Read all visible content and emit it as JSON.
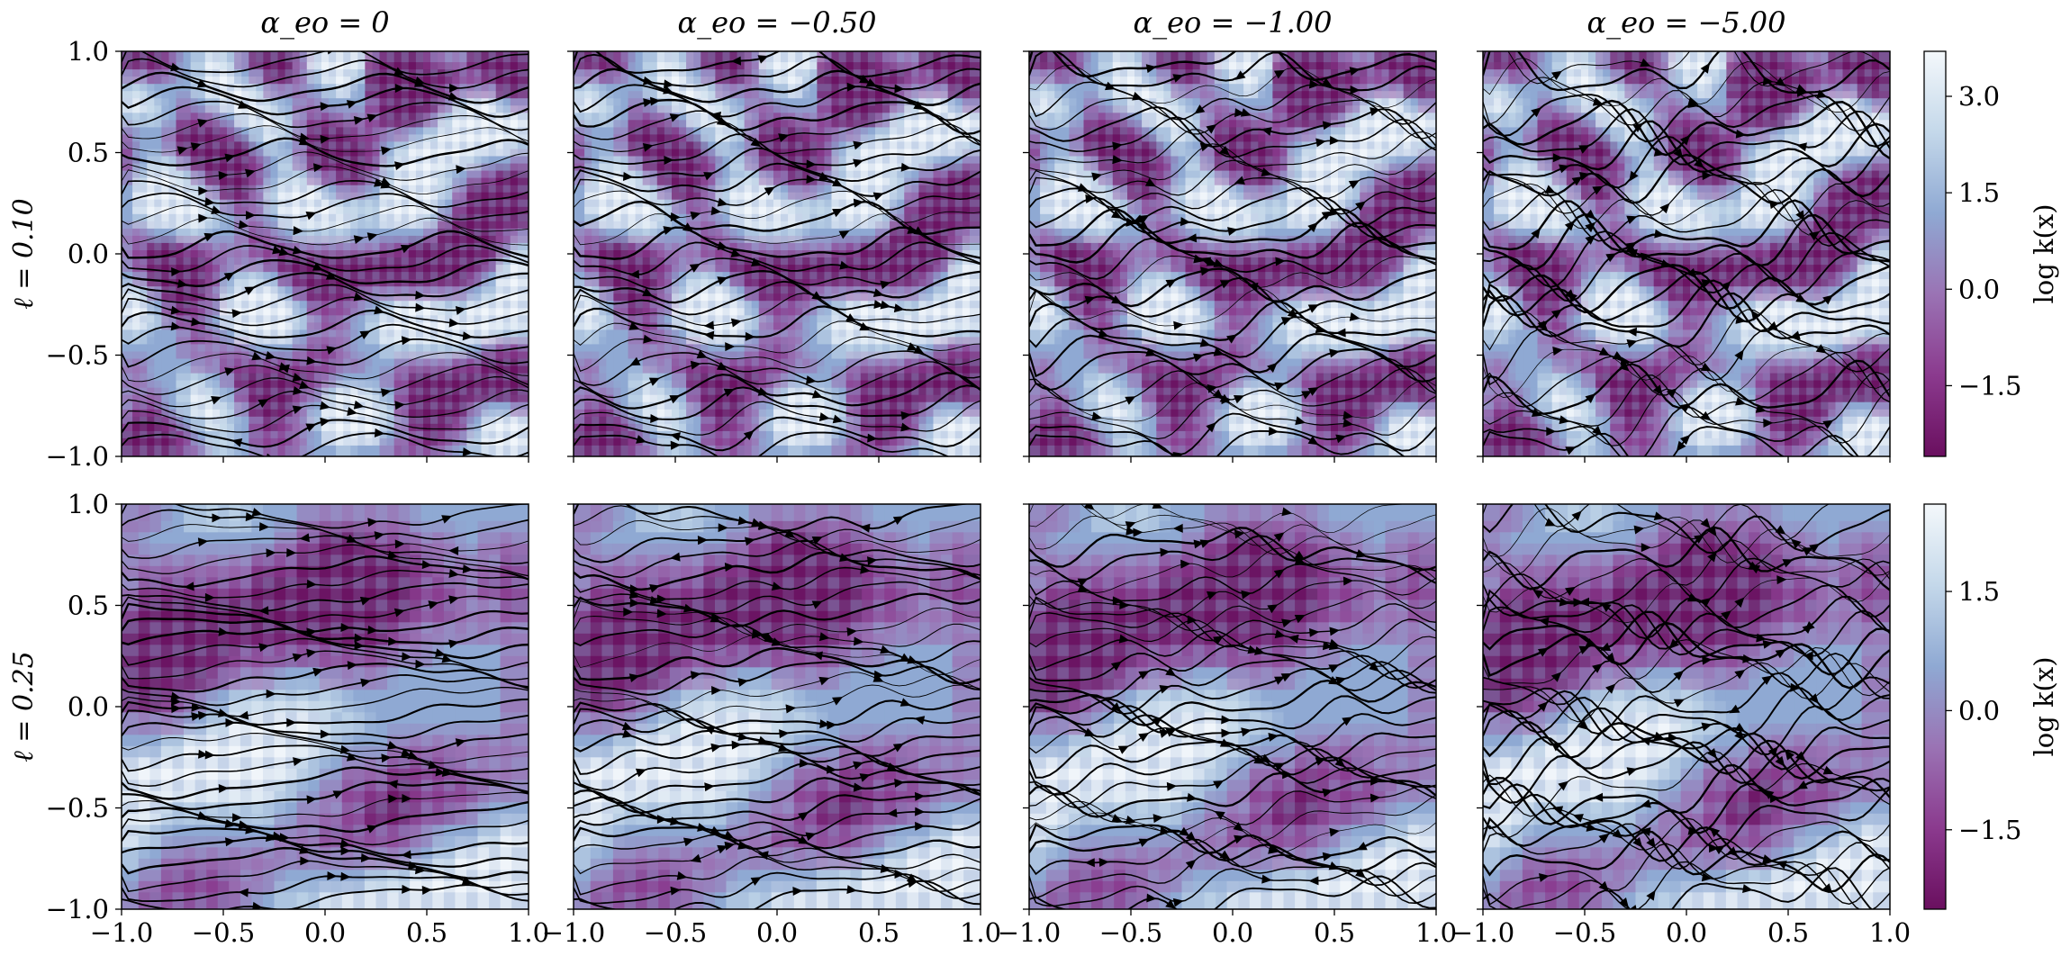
{
  "chart_data": {
    "type": "heatmap",
    "overlay": "streamlines",
    "column_titles": [
      "α_eo = 0",
      "α_eo = −0.50",
      "α_eo = −1.00",
      "α_eo = −5.00"
    ],
    "row_labels": [
      "ℓ = 0.10",
      "ℓ = 0.25"
    ],
    "xlim": [
      -1.0,
      1.0
    ],
    "ylim": [
      -1.0,
      1.0
    ],
    "x_ticks": [
      "−1.0",
      "−0.5",
      "0.0",
      "0.5",
      "1.0"
    ],
    "y_ticks": [
      "−1.0",
      "−0.5",
      "0.0",
      "0.5",
      "1.0"
    ],
    "x_tick_values": [
      -1.0,
      -0.5,
      0.0,
      0.5,
      1.0
    ],
    "y_tick_values": [
      -1.0,
      -0.5,
      0.0,
      0.5,
      1.0
    ],
    "colormap": [
      "#6a0f5f",
      "#8b3a8e",
      "#9a73b4",
      "#8fa9d3",
      "#c4d8ea",
      "#f4f8fb"
    ],
    "colorbars": [
      {
        "label": "log k(x)",
        "ticks": [
          "3.0",
          "1.5",
          "0.0",
          "−1.5"
        ],
        "tick_values": [
          3.0,
          1.5,
          0.0,
          -1.5
        ],
        "range": [
          -2.6,
          3.7
        ]
      },
      {
        "label": "log k(x)",
        "ticks": [
          "1.5",
          "0.0",
          "−1.5"
        ],
        "tick_values": [
          1.5,
          0.0,
          -1.5
        ],
        "range": [
          -2.5,
          2.6
        ]
      }
    ],
    "grid": false
  }
}
